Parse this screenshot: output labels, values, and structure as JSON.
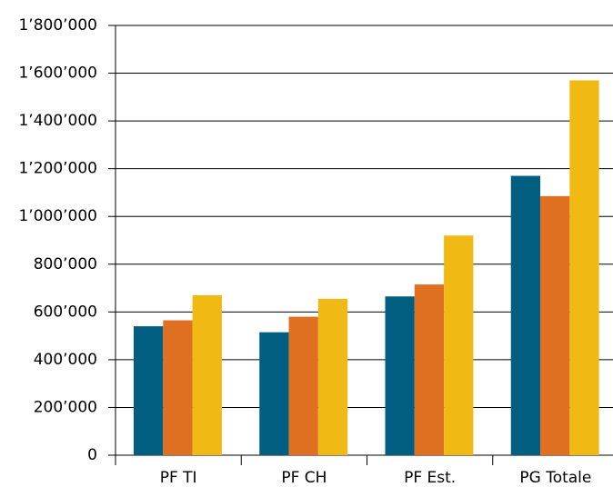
{
  "chart_data": {
    "type": "bar",
    "categories": [
      "PF TI",
      "PF CH",
      "PF Est.",
      "PG Totale"
    ],
    "series": [
      {
        "color": "#005f80",
        "values": [
          540000,
          515000,
          665000,
          1170000
        ]
      },
      {
        "color": "#e07021",
        "values": [
          565000,
          580000,
          715000,
          1085000
        ]
      },
      {
        "color": "#f0b913",
        "values": [
          670000,
          655000,
          920000,
          1570000
        ]
      }
    ],
    "ylim": [
      0,
      1800000
    ],
    "yticks": [
      0,
      {
        "value": 200000,
        "label": "200’000"
      },
      {
        "value": 400000,
        "label": "400’000"
      },
      {
        "value": 600000,
        "label": "600’000"
      },
      {
        "value": 800000,
        "label": "800’000"
      },
      {
        "value": 1000000,
        "label": "1’000’000"
      },
      {
        "value": 1200000,
        "label": "1’200’000"
      },
      {
        "value": 1400000,
        "label": "1’400’000"
      },
      {
        "value": 1600000,
        "label": "1’600’000"
      },
      {
        "value": 1800000,
        "label": "1’800’000"
      }
    ],
    "grid": true
  }
}
